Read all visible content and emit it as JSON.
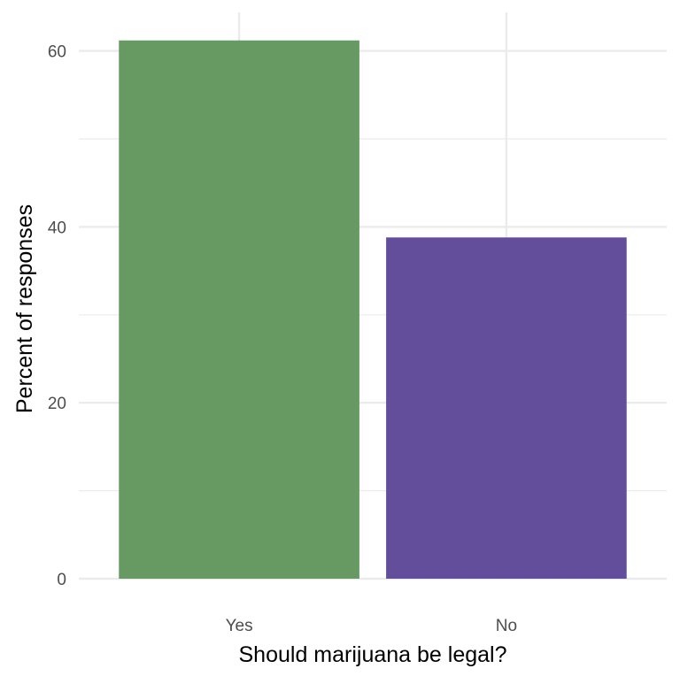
{
  "chart_data": {
    "type": "bar",
    "title": "",
    "xlabel": "Should marijuana be legal?",
    "ylabel": "Percent of responses",
    "categories": [
      "Yes",
      "No"
    ],
    "values": [
      61.2,
      38.8
    ],
    "colors": [
      "#679a63",
      "#624e9a"
    ],
    "ylim": [
      0,
      64
    ],
    "yticks": [
      0,
      20,
      40,
      60
    ],
    "grid": true,
    "legend": "none"
  }
}
